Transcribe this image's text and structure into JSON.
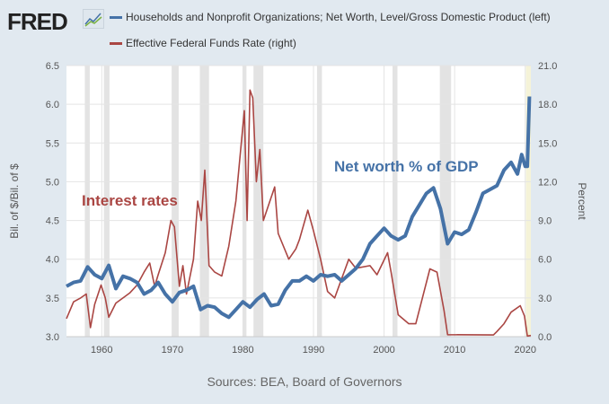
{
  "header": {
    "logo": "FRED"
  },
  "legend": [
    {
      "label": "Households and Nonprofit Organizations; Net Worth, Level/Gross Domestic Product (left)",
      "color": "#4572a7"
    },
    {
      "label": "Effective Federal Funds Rate (right)",
      "color": "#aa4643"
    }
  ],
  "source": "Sources: BEA, Board of Governors",
  "chart_data": {
    "type": "line",
    "ylabel": "Bil. of $/Bil. of $",
    "y2label": "Percent",
    "xlim": [
      1955,
      2020.8
    ],
    "ylim": [
      3.0,
      6.5
    ],
    "y2lim": [
      0,
      21
    ],
    "xticks": [
      "1960",
      "1970",
      "1980",
      "1990",
      "2000",
      "2010",
      "2020"
    ],
    "yticks": [
      "3.0",
      "3.5",
      "4.0",
      "4.5",
      "5.0",
      "5.5",
      "6.0",
      "6.5"
    ],
    "y2ticks": [
      "0.0",
      "3.0",
      "6.0",
      "9.0",
      "12.0",
      "15.0",
      "18.0",
      "21.0"
    ],
    "grid": true,
    "annotations": [
      {
        "text": "Net worth % of GDP",
        "color": "#4572a7"
      },
      {
        "text": "Interest rates",
        "color": "#aa4643"
      }
    ],
    "recessions": [
      [
        1957.6,
        1958.3
      ],
      [
        1960.3,
        1961.1
      ],
      [
        1969.9,
        1970.9
      ],
      [
        1973.9,
        1975.2
      ],
      [
        1980.0,
        1980.5
      ],
      [
        1981.5,
        1982.9
      ],
      [
        1990.5,
        1991.2
      ],
      [
        2001.2,
        2001.9
      ],
      [
        2007.9,
        2009.5
      ],
      [
        2020.1,
        2020.4
      ]
    ],
    "series": [
      {
        "name": "Net Worth / GDP",
        "axis": "left",
        "color": "#4572a7",
        "x": [
          1955,
          1956,
          1957,
          1958,
          1959,
          1960,
          1961,
          1962,
          1963,
          1964,
          1965,
          1966,
          1967,
          1968,
          1969,
          1970,
          1971,
          1972,
          1973,
          1974,
          1975,
          1976,
          1977,
          1978,
          1979,
          1980,
          1981,
          1982,
          1983,
          1984,
          1985,
          1986,
          1987,
          1988,
          1989,
          1990,
          1991,
          1992,
          1993,
          1994,
          1995,
          1996,
          1997,
          1998,
          1999,
          2000,
          2001,
          2002,
          2003,
          2004,
          2005,
          2006,
          2007,
          2008,
          2009,
          2010,
          2011,
          2012,
          2013,
          2014,
          2015,
          2016,
          2017,
          2018,
          2018.9,
          2019.5,
          2020.0,
          2020.3,
          2020.6
        ],
        "values": [
          3.65,
          3.7,
          3.72,
          3.9,
          3.8,
          3.75,
          3.92,
          3.62,
          3.78,
          3.75,
          3.7,
          3.55,
          3.6,
          3.7,
          3.55,
          3.45,
          3.57,
          3.6,
          3.65,
          3.35,
          3.4,
          3.38,
          3.3,
          3.25,
          3.35,
          3.45,
          3.38,
          3.48,
          3.55,
          3.4,
          3.42,
          3.6,
          3.72,
          3.72,
          3.78,
          3.72,
          3.8,
          3.78,
          3.8,
          3.72,
          3.8,
          3.88,
          4.0,
          4.2,
          4.3,
          4.4,
          4.3,
          4.25,
          4.3,
          4.55,
          4.7,
          4.85,
          4.92,
          4.65,
          4.2,
          4.35,
          4.32,
          4.38,
          4.6,
          4.85,
          4.9,
          4.95,
          5.15,
          5.25,
          5.1,
          5.35,
          5.2,
          5.2,
          6.1
        ]
      },
      {
        "name": "Effective Federal Funds Rate",
        "axis": "right",
        "color": "#aa4643",
        "x": [
          1955,
          1956,
          1957,
          1957.8,
          1958.4,
          1959,
          1959.9,
          1960.5,
          1961,
          1962,
          1963,
          1964,
          1965,
          1966,
          1966.8,
          1967.5,
          1968,
          1969,
          1969.8,
          1970.3,
          1971,
          1971.5,
          1972,
          1973,
          1973.6,
          1974.1,
          1974.6,
          1975.2,
          1976,
          1977,
          1978,
          1979,
          1980.2,
          1980.6,
          1981,
          1981.4,
          1981.9,
          1982.4,
          1982.9,
          1984.5,
          1985,
          1986.5,
          1987.5,
          1988,
          1989.2,
          1990,
          1991,
          1992,
          1993,
          1994,
          1995,
          1996,
          1998,
          1999,
          2000.5,
          2001,
          2002,
          2003.5,
          2004.5,
          2006.5,
          2007.5,
          2008.5,
          2009,
          2015.5,
          2016,
          2017,
          2018,
          2019.3,
          2019.9,
          2020.3,
          2020.8
        ],
        "values": [
          1.4,
          2.7,
          3.0,
          3.3,
          0.7,
          2.5,
          4.0,
          3.0,
          1.5,
          2.6,
          3.0,
          3.4,
          4.0,
          5.0,
          5.7,
          3.9,
          4.8,
          6.5,
          9.0,
          8.5,
          3.9,
          5.5,
          3.3,
          6.0,
          10.5,
          9.0,
          12.9,
          5.5,
          5.0,
          4.7,
          7.0,
          10.5,
          17.5,
          9.0,
          19.1,
          18.5,
          12.0,
          14.5,
          9.0,
          11.6,
          8.0,
          6.0,
          6.8,
          7.5,
          9.8,
          8.2,
          6.0,
          3.5,
          3.0,
          4.5,
          6.0,
          5.3,
          5.5,
          4.8,
          6.5,
          5.0,
          1.7,
          1.0,
          1.0,
          5.25,
          5.0,
          2.0,
          0.15,
          0.13,
          0.4,
          1.0,
          1.9,
          2.4,
          1.6,
          0.05,
          0.09
        ]
      }
    ]
  }
}
